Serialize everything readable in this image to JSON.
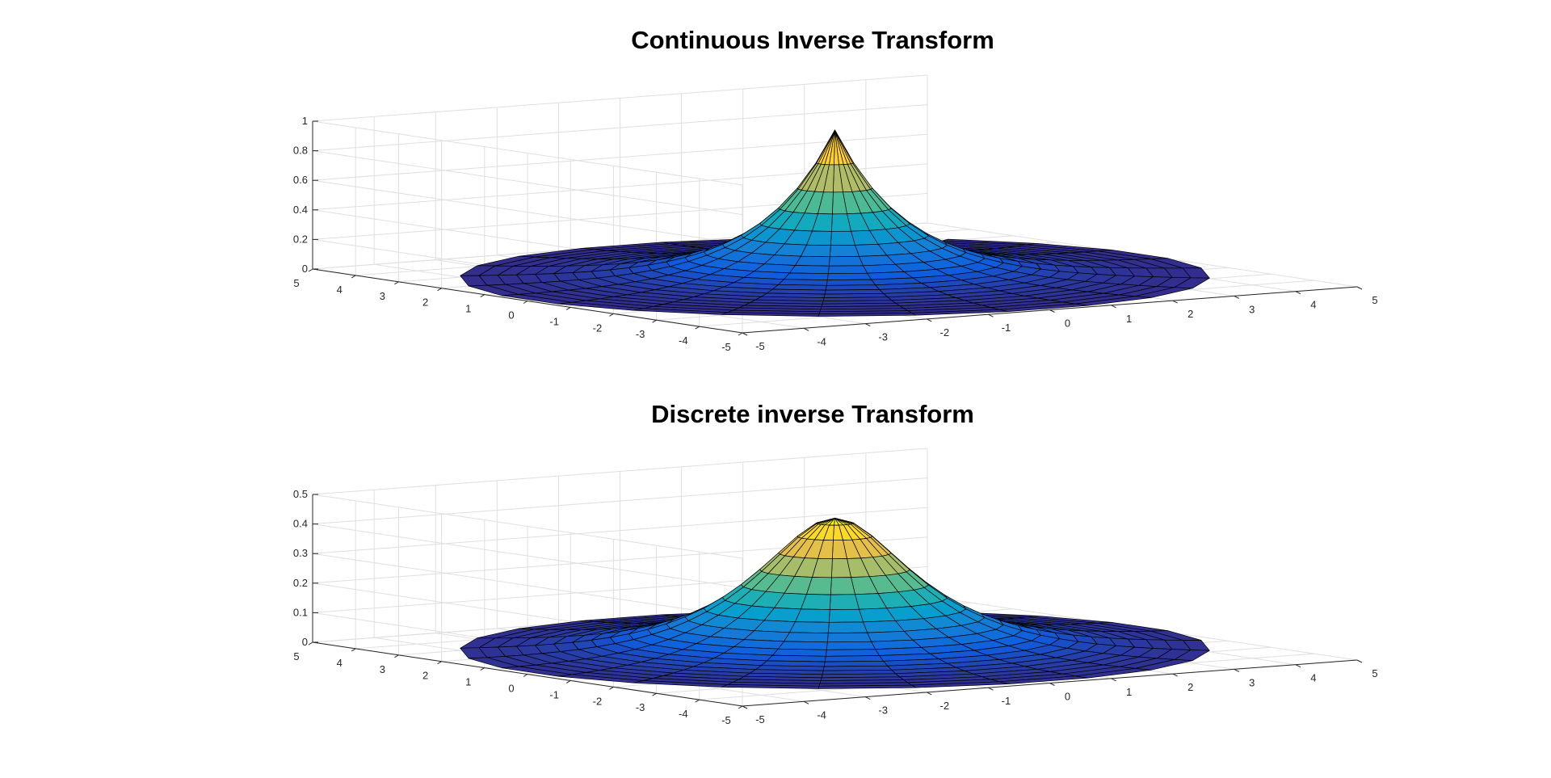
{
  "chart_data": [
    {
      "type": "surface3d",
      "title": "Continuous Inverse Transform",
      "xlabel": "",
      "ylabel": "",
      "zlabel": "",
      "xlim": [
        -5,
        5
      ],
      "ylim": [
        -5,
        5
      ],
      "zlim": [
        0,
        1
      ],
      "x_ticks": [
        "-5",
        "-4",
        "-3",
        "-2",
        "-1",
        "0",
        "1",
        "2",
        "3",
        "4",
        "5"
      ],
      "y_ticks": [
        "-5",
        "-4",
        "-3",
        "-2",
        "-1",
        "0",
        "1",
        "2",
        "3",
        "4",
        "5"
      ],
      "z_ticks": [
        "0",
        "0.2",
        "0.4",
        "0.6",
        "0.8",
        "1"
      ],
      "z_tick_values": [
        0,
        0.2,
        0.4,
        0.6,
        0.8,
        1
      ],
      "grid": true,
      "colormap": "parula",
      "surface": {
        "domain": "polar",
        "r_range": [
          0,
          5
        ],
        "r_steps": 20,
        "theta_steps": 24,
        "theta_cut": 1,
        "peak_z": 1,
        "profile": "exp(-r)"
      }
    },
    {
      "type": "surface3d",
      "title": "Discrete inverse Transform",
      "xlabel": "",
      "ylabel": "",
      "zlabel": "",
      "xlim": [
        -5,
        5
      ],
      "ylim": [
        -5,
        5
      ],
      "zlim": [
        0,
        0.5
      ],
      "x_ticks": [
        "-5",
        "-4",
        "-3",
        "-2",
        "-1",
        "0",
        "1",
        "2",
        "3",
        "4",
        "5"
      ],
      "y_ticks": [
        "-5",
        "-4",
        "-3",
        "-2",
        "-1",
        "0",
        "1",
        "2",
        "3",
        "4",
        "5"
      ],
      "z_ticks": [
        "0",
        "0.1",
        "0.2",
        "0.3",
        "0.4",
        "0.5"
      ],
      "z_tick_values": [
        0,
        0.1,
        0.2,
        0.3,
        0.4,
        0.5
      ],
      "grid": true,
      "colormap": "parula",
      "surface": {
        "domain": "polar",
        "r_range": [
          0,
          5
        ],
        "r_steps": 20,
        "theta_steps": 24,
        "theta_cut": 1,
        "peak_z": 0.45,
        "profile": "rounded-exp(-r)"
      }
    }
  ]
}
